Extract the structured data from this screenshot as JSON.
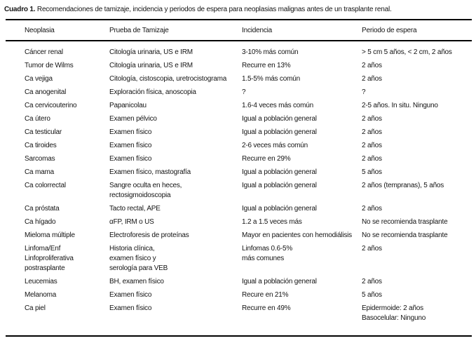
{
  "title": {
    "label": "Cuadro 1.",
    "text": "Recomendaciones de tamizaje, incidencia y periodos de espera para neoplasias malignas antes de un trasplante renal."
  },
  "table": {
    "columns": [
      "Neoplasia",
      "Prueba de Tamizaje",
      "Incidencia",
      "Periodo de espera"
    ],
    "rows": [
      {
        "neoplasia": "Cáncer renal",
        "prueba": "Citología urinaria, US e IRM",
        "incidencia": "3-10% más común",
        "periodo": "> 5 cm 5 años, < 2 cm, 2 años"
      },
      {
        "neoplasia": "Tumor de Wilms",
        "prueba": "Citología urinaria, US e IRM",
        "incidencia": "Recurre en 13%",
        "periodo": "2 años"
      },
      {
        "neoplasia": "Ca vejiga",
        "prueba": "Citología, cistoscopia, uretrocistograma",
        "incidencia": "1.5-5% más común",
        "periodo": "2 años"
      },
      {
        "neoplasia": "Ca anogenital",
        "prueba": "Exploración física, anoscopia",
        "incidencia": "?",
        "periodo": "?"
      },
      {
        "neoplasia": "Ca cervicouterino",
        "prueba": "Papanicolau",
        "incidencia": "1.6-4 veces más común",
        "periodo": "2-5 años. In situ. Ninguno"
      },
      {
        "neoplasia": "Ca útero",
        "prueba": "Examen pélvico",
        "incidencia": "Igual a población general",
        "periodo": "2 años"
      },
      {
        "neoplasia": "Ca testicular",
        "prueba": "Examen físico",
        "incidencia": "Igual a población general",
        "periodo": "2 años"
      },
      {
        "neoplasia": "Ca tiroides",
        "prueba": "Examen físico",
        "incidencia": "2-6 veces más común",
        "periodo": "2 años"
      },
      {
        "neoplasia": "Sarcomas",
        "prueba": "Examen físico",
        "incidencia": "Recurre en 29%",
        "periodo": "2 años"
      },
      {
        "neoplasia": "Ca mama",
        "prueba": "Examen físico, mastografía",
        "incidencia": "Igual a población general",
        "periodo": "5 años"
      },
      {
        "neoplasia": "Ca colorrectal",
        "prueba": "Sangre oculta en heces,\nrectosigmoidoscopia",
        "incidencia": "Igual a población general",
        "periodo": "2 años (tempranas), 5 años"
      },
      {
        "neoplasia": "Ca próstata",
        "prueba": "Tacto rectal, APE",
        "incidencia": "Igual a población general",
        "periodo": "2 años"
      },
      {
        "neoplasia": "Ca hígado",
        "prueba": "αFP, IRM o US",
        "incidencia": "1.2 a 1.5 veces más",
        "periodo": "No se recomienda trasplante"
      },
      {
        "neoplasia": "Mieloma múltiple",
        "prueba": "Electroforesis de proteínas",
        "incidencia": "Mayor en pacientes con hemodiálisis",
        "periodo": "No se recomienda trasplante"
      },
      {
        "neoplasia": "Linfoma/Enf\nLinfoproliferativa\npostrasplante",
        "prueba": "Historia clínica,\nexamen físico y\nserología para VEB",
        "incidencia": "Linfomas 0.6-5%\nmás comunes",
        "periodo": "2 años"
      },
      {
        "neoplasia": "Leucemias",
        "prueba": "BH, examen físico",
        "incidencia": "Igual a población general",
        "periodo": "2 años"
      },
      {
        "neoplasia": "Melanoma",
        "prueba": "Examen físico",
        "incidencia": "Recure en 21%",
        "periodo": "5 años"
      },
      {
        "neoplasia": "Ca piel",
        "prueba": "Examen físico",
        "incidencia": "Recurre en 49%",
        "periodo": "Epidermoide: 2 años\nBasocelular: Ninguno"
      }
    ]
  }
}
